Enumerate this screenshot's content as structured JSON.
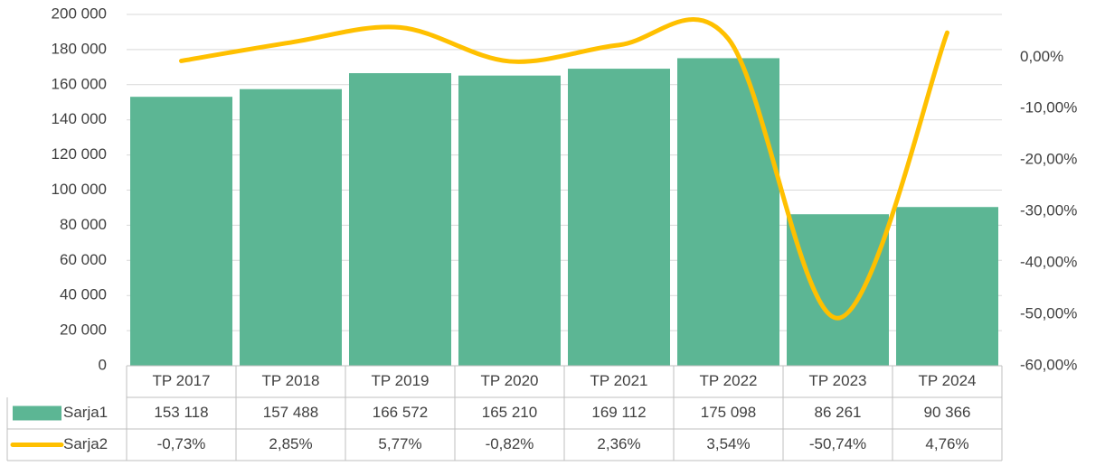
{
  "chart_data": {
    "type": "bar-line",
    "categories": [
      "TP 2017",
      "TP 2018",
      "TP 2019",
      "TP 2020",
      "TP 2021",
      "TP 2022",
      "TP 2023",
      "TP 2024"
    ],
    "series": [
      {
        "name": "Sarja1",
        "color": "#5cb694",
        "type": "bar",
        "axis": "y",
        "values": [
          153118,
          157488,
          166572,
          165210,
          169112,
          175098,
          86261,
          90366
        ],
        "value_labels": [
          "153 118",
          "157 488",
          "166 572",
          "165 210",
          "169 112",
          "175 098",
          "86 261",
          "90 366"
        ]
      },
      {
        "name": "Sarja2",
        "color": "#ffc000",
        "type": "line",
        "axis": "y2",
        "values": [
          -0.73,
          2.85,
          5.77,
          -0.82,
          2.36,
          3.54,
          -50.74,
          4.76
        ],
        "value_labels": [
          "-0,73%",
          "2,85%",
          "5,77%",
          "-0,82%",
          "2,36%",
          "3,54%",
          "-50,74%",
          "4,76%"
        ]
      }
    ],
    "ylim": [
      0,
      200000
    ],
    "yticks": [
      0,
      {
        "value": 20000,
        "label": "20 000"
      },
      {
        "value": 40000,
        "label": "40 000"
      },
      {
        "value": 60000,
        "label": "60 000"
      },
      {
        "value": 80000,
        "label": "80 000"
      },
      {
        "value": 100000,
        "label": "100 000"
      },
      {
        "value": 120000,
        "label": "120 000"
      },
      {
        "value": 140000,
        "label": "140 000"
      },
      {
        "value": 160000,
        "label": "160 000"
      },
      {
        "value": 180000,
        "label": "180 000"
      },
      {
        "value": 200000,
        "label": "200 000"
      }
    ],
    "y2lim": [
      -60,
      8.3
    ],
    "y2ticks": [
      {
        "value": -60,
        "label": "-60,00%"
      },
      {
        "value": -50,
        "label": "-50,00%"
      },
      {
        "value": -40,
        "label": "-40,00%"
      },
      {
        "value": -30,
        "label": "-30,00%"
      },
      {
        "value": -20,
        "label": "-20,00%"
      },
      {
        "value": -10,
        "label": "-10,00%"
      },
      {
        "value": 0,
        "label": "0,00%"
      }
    ],
    "grid": true
  }
}
